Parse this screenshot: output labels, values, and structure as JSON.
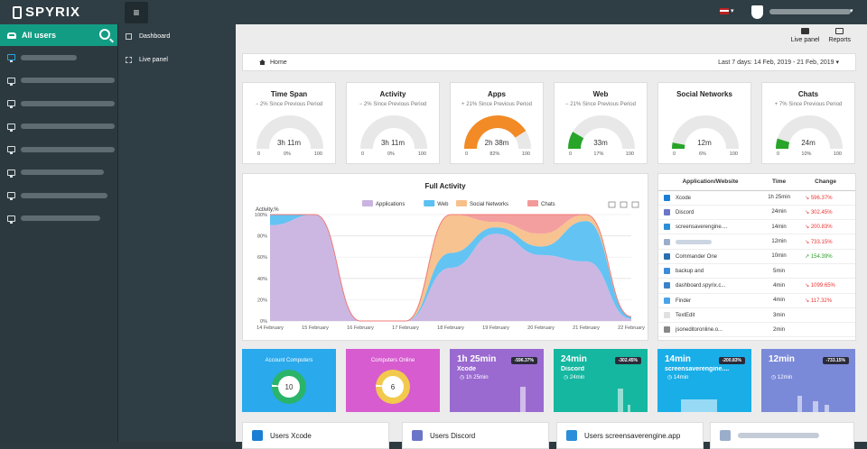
{
  "app": {
    "logo": "SPYRIX",
    "menu_icon": "hamburger-icon"
  },
  "sidebar": {
    "all_users": "All users",
    "user_count": 8
  },
  "nav": {
    "dashboard": "Dashboard",
    "live_panel": "Live panel"
  },
  "toolbar": {
    "live_panel": "Live panel",
    "reports": "Reports"
  },
  "breadcrumb": {
    "home": "Home",
    "range": "Last 7 days: 14 Feb, 2019 - 21 Feb, 2019"
  },
  "gauges": [
    {
      "title": "Time Span",
      "sub": "− 2% Since Previous Period",
      "value": "3h 11m",
      "min": "0",
      "pct": "0%",
      "max": "100",
      "fill": 0,
      "color": "#28a428"
    },
    {
      "title": "Activity",
      "sub": "− 2% Since Previous Period",
      "value": "3h 11m",
      "min": "0",
      "pct": "0%",
      "max": "100",
      "fill": 0,
      "color": "#28a428"
    },
    {
      "title": "Apps",
      "sub": "+ 21% Since Previous Period",
      "value": "2h 38m",
      "min": "0",
      "pct": "82%",
      "max": "100",
      "fill": 0.82,
      "color": "#f28a25"
    },
    {
      "title": "Web",
      "sub": "− 21% Since Previous Period",
      "value": "33m",
      "min": "0",
      "pct": "17%",
      "max": "100",
      "fill": 0.17,
      "color": "#28a428"
    },
    {
      "title": "Social Networks",
      "sub": "",
      "value": "12m",
      "min": "0",
      "pct": "6%",
      "max": "100",
      "fill": 0.06,
      "color": "#28a428"
    },
    {
      "title": "Chats",
      "sub": "+ 7% Since Previous Period",
      "value": "24m",
      "min": "0",
      "pct": "10%",
      "max": "100",
      "fill": 0.1,
      "color": "#28a428"
    }
  ],
  "chart_data": {
    "type": "area",
    "title": "Full Activity",
    "ylabel": "Activity,%",
    "legend": [
      {
        "name": "Applications",
        "color": "#c9b3e0"
      },
      {
        "name": "Web",
        "color": "#5bc0f2"
      },
      {
        "name": "Social Networks",
        "color": "#f7c08a"
      },
      {
        "name": "Chats",
        "color": "#f29a9a"
      }
    ],
    "x": [
      "14 February",
      "15 February",
      "16 February",
      "17 February",
      "18 February",
      "19 February",
      "20 February",
      "21 February",
      "22 February"
    ],
    "y_ticks": [
      "0%",
      "20%",
      "40%",
      "60%",
      "80%",
      "100%"
    ],
    "ylim": [
      0,
      100
    ],
    "series": [
      {
        "name": "Applications",
        "values": [
          90,
          100,
          0,
          0,
          50,
          82,
          62,
          56,
          2
        ]
      },
      {
        "name": "Web",
        "values": [
          10,
          0,
          0,
          0,
          14,
          6,
          8,
          38,
          2
        ]
      },
      {
        "name": "Social Networks",
        "values": [
          0,
          0,
          0,
          0,
          36,
          5,
          12,
          6,
          0
        ]
      },
      {
        "name": "Chats",
        "values": [
          0,
          0,
          0,
          0,
          0,
          7,
          18,
          0,
          0
        ]
      }
    ]
  },
  "table": {
    "headers": [
      "Application/Website",
      "Time",
      "Change"
    ],
    "rows": [
      {
        "name": "Xcode",
        "time": "1h 25min",
        "change": "596.37%",
        "up": false,
        "color": "#1a7fd4"
      },
      {
        "name": "Discord",
        "time": "24min",
        "change": "302.45%",
        "up": false,
        "color": "#6a75c8"
      },
      {
        "name": "screensaverengine....",
        "time": "14min",
        "change": "200.83%",
        "up": false,
        "color": "#2a8fd8"
      },
      {
        "name": "",
        "time": "12min",
        "change": "733.15%",
        "up": false,
        "color": "#9aaecb"
      },
      {
        "name": "Commander One",
        "time": "10min",
        "change": "154.39%",
        "up": true,
        "color": "#2a6fb0"
      },
      {
        "name": "backup and",
        "time": "5min",
        "change": "",
        "up": false,
        "color": "#3c8dd8"
      },
      {
        "name": "dashboard.spyrix.c...",
        "time": "4min",
        "change": "1099.65%",
        "up": false,
        "color": "#3a82c8"
      },
      {
        "name": "Finder",
        "time": "4min",
        "change": "117.32%",
        "up": false,
        "color": "#4aa3e8"
      },
      {
        "name": "TextEdit",
        "time": "3min",
        "change": "",
        "up": false,
        "color": "#e0e0e0"
      },
      {
        "name": "jsoneditoronline.o...",
        "time": "2min",
        "change": "",
        "up": false,
        "color": "#888"
      }
    ]
  },
  "tiles": [
    {
      "title": "Account Computers",
      "value": "10",
      "color": "#2aa9ec",
      "ring": "#2ab46a"
    },
    {
      "title": "Computers Online",
      "value": "6",
      "color": "#d65ccf",
      "ring": "#f2c94c"
    },
    {
      "big": "1h 25min",
      "name": "Xcode",
      "sub": "1h 25min",
      "badge": "-596.37%",
      "color": "#9a6ad0"
    },
    {
      "big": "24min",
      "name": "Discord",
      "sub": "24min",
      "badge": "-302.45%",
      "color": "#15b7a0"
    },
    {
      "big": "14min",
      "name": "screensaverengine....",
      "sub": "14min",
      "badge": "-200.83%",
      "color": "#1aaee8"
    },
    {
      "big": "12min",
      "name": "",
      "sub": "12min",
      "badge": "-733.15%",
      "color": "#7b8ad8"
    }
  ],
  "user_cards": [
    {
      "label": "Users Xcode",
      "color": "#1a7fd4"
    },
    {
      "label": "Users Discord",
      "color": "#6a75c8"
    },
    {
      "label": "Users screensaverengine.app",
      "color": "#2a8fd8"
    },
    {
      "label": "",
      "color": "#9aaecb"
    }
  ]
}
